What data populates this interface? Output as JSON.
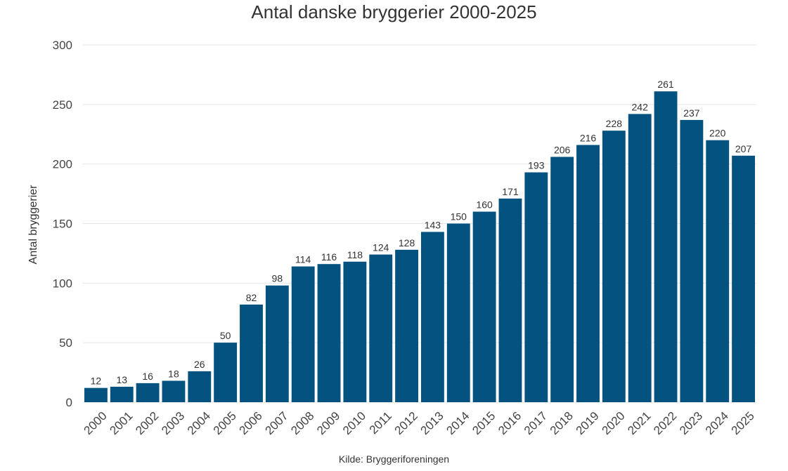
{
  "chart_data": {
    "type": "bar",
    "title": "Antal danske bryggerier 2000-2025",
    "xlabel": "",
    "ylabel": "Antal bryggerier",
    "source": "Kilde: Bryggeriforeningen",
    "categories": [
      "2000",
      "2001",
      "2002",
      "2003",
      "2004",
      "2005",
      "2006",
      "2007",
      "2008",
      "2009",
      "2010",
      "2011",
      "2012",
      "2013",
      "2014",
      "2015",
      "2016",
      "2017",
      "2018",
      "2019",
      "2020",
      "2021",
      "2022",
      "2023",
      "2024",
      "2025"
    ],
    "values": [
      12,
      13,
      16,
      18,
      26,
      50,
      82,
      98,
      114,
      116,
      118,
      124,
      128,
      143,
      150,
      160,
      171,
      193,
      206,
      216,
      228,
      242,
      261,
      237,
      220,
      207
    ],
    "ylim": [
      0,
      300
    ],
    "yticks": [
      0,
      50,
      100,
      150,
      200,
      250,
      300
    ],
    "grid": true,
    "bar_color": "#03527f",
    "data_labels": true
  }
}
